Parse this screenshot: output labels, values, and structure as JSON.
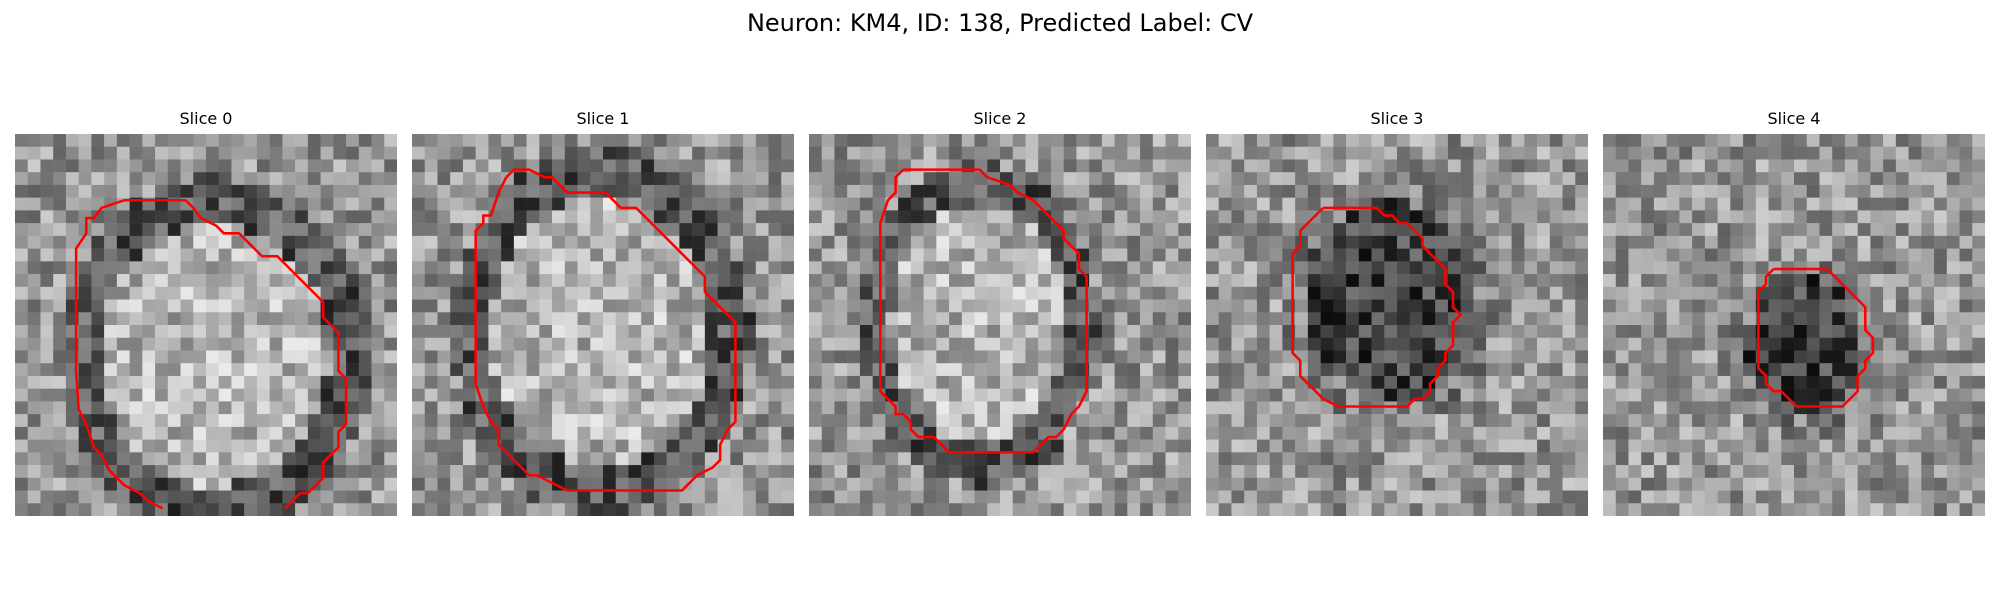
{
  "figure": {
    "title": "Neuron: KM4, ID: 138, Predicted Label: CV",
    "colors": {
      "contour": "#ff0000",
      "background": "#ffffff"
    },
    "panels": [
      {
        "title": "Slice 0",
        "bright_ellipse": true,
        "seed": 11
      },
      {
        "title": "Slice 1",
        "bright_ellipse": true,
        "seed": 23
      },
      {
        "title": "Slice 2",
        "bright_ellipse": true,
        "seed": 37
      },
      {
        "title": "Slice 3",
        "bright_ellipse": false,
        "seed": 41
      },
      {
        "title": "Slice 4",
        "bright_ellipse": false,
        "seed": 53
      }
    ]
  }
}
